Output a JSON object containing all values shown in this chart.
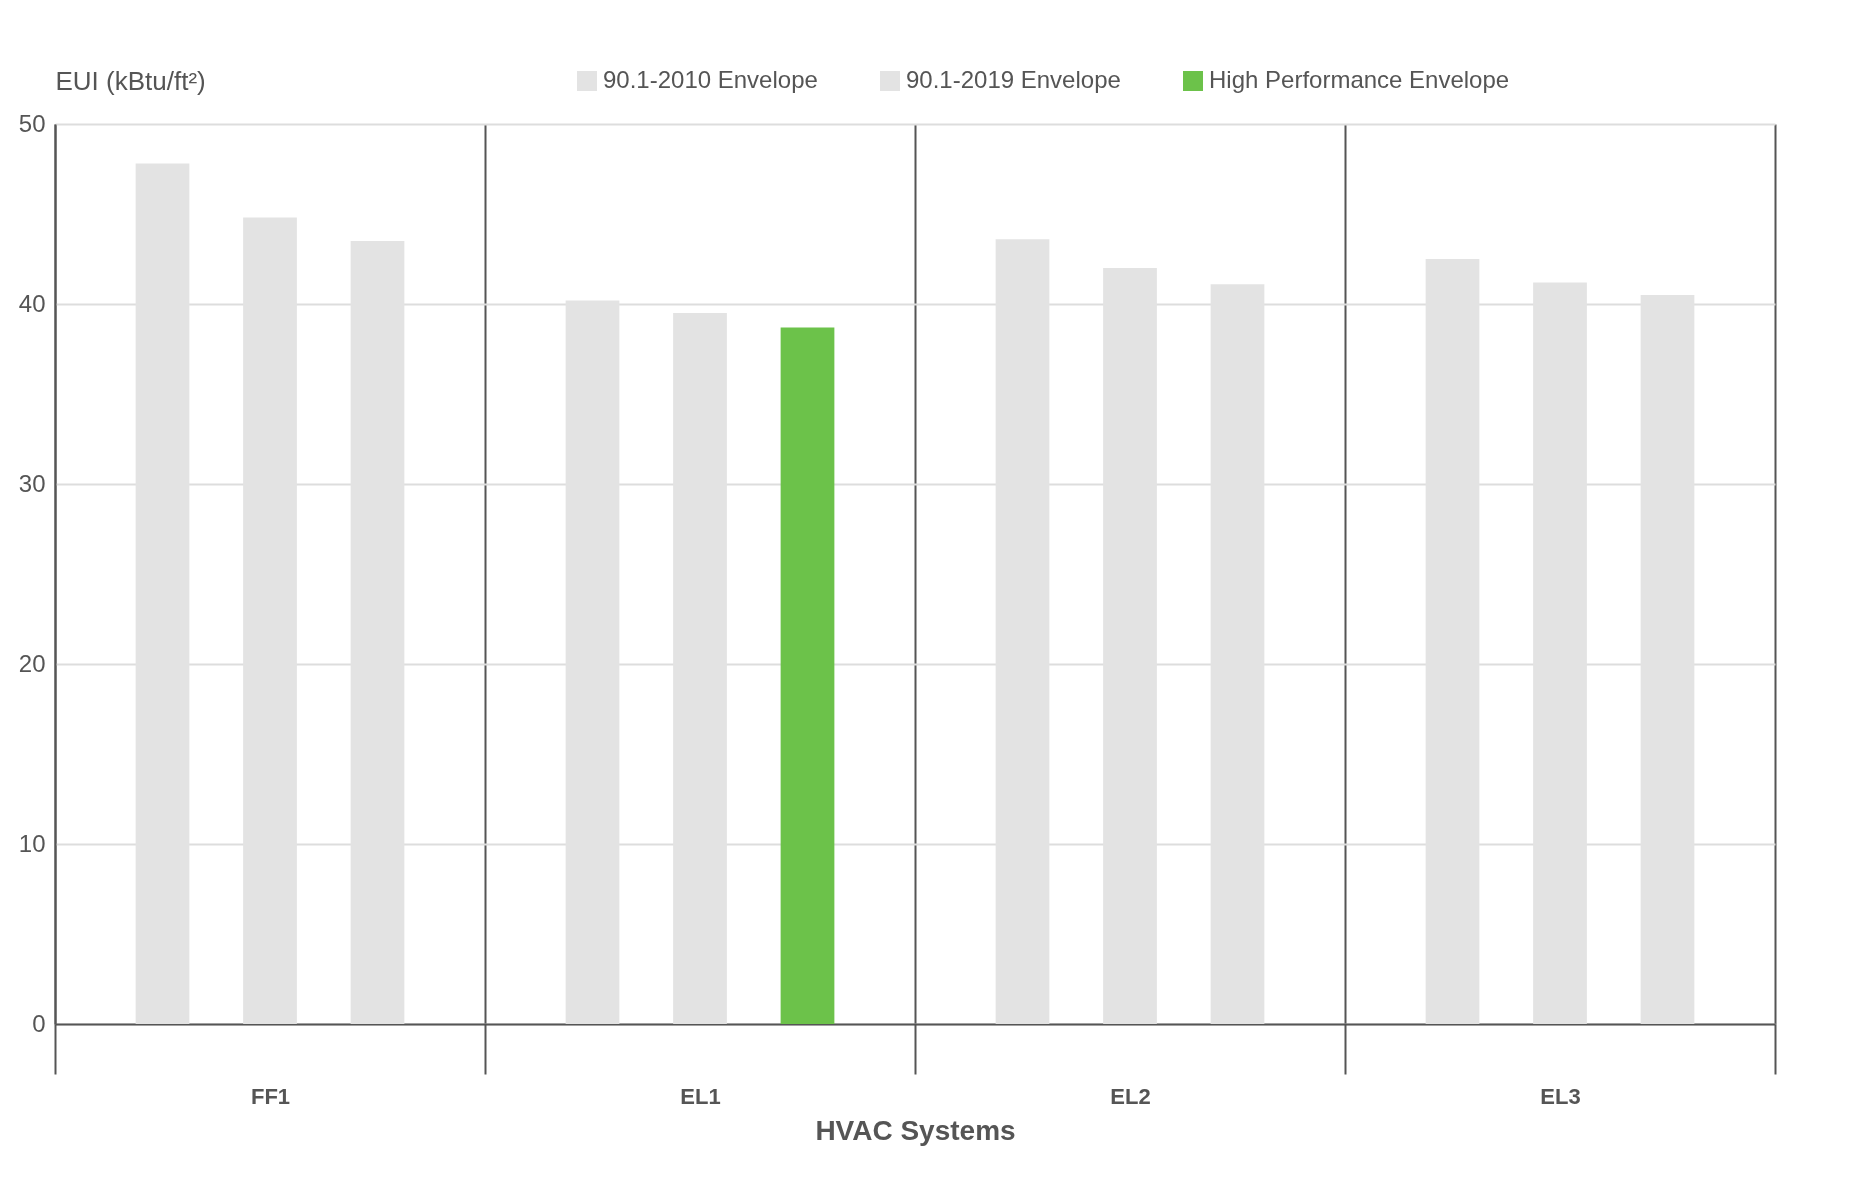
{
  "chart_data": {
    "type": "bar",
    "ylabel": "EUI (kBtu/ft²)",
    "xlabel": "HVAC Systems",
    "categories": [
      "FF1",
      "EL1",
      "EL2",
      "EL3"
    ],
    "series": [
      {
        "name": "90.1-2010 Envelope",
        "color": "#e3e3e3",
        "values": [
          47.8,
          40.2,
          43.6,
          42.5
        ]
      },
      {
        "name": "90.1-2019 Envelope",
        "color": "#e3e3e3",
        "values": [
          44.8,
          39.5,
          42.0,
          41.2
        ]
      },
      {
        "name": "High Performance Envelope",
        "color": "#6cc24a",
        "colors": [
          "#e3e3e3",
          "#6cc24a",
          "#e3e3e3",
          "#e3e3e3"
        ],
        "values": [
          43.5,
          38.7,
          41.1,
          40.5
        ]
      }
    ],
    "ylim": [
      0,
      50
    ],
    "yticks": [
      0,
      10,
      20,
      30,
      40,
      50
    ],
    "grid": true,
    "legend": "top right"
  }
}
